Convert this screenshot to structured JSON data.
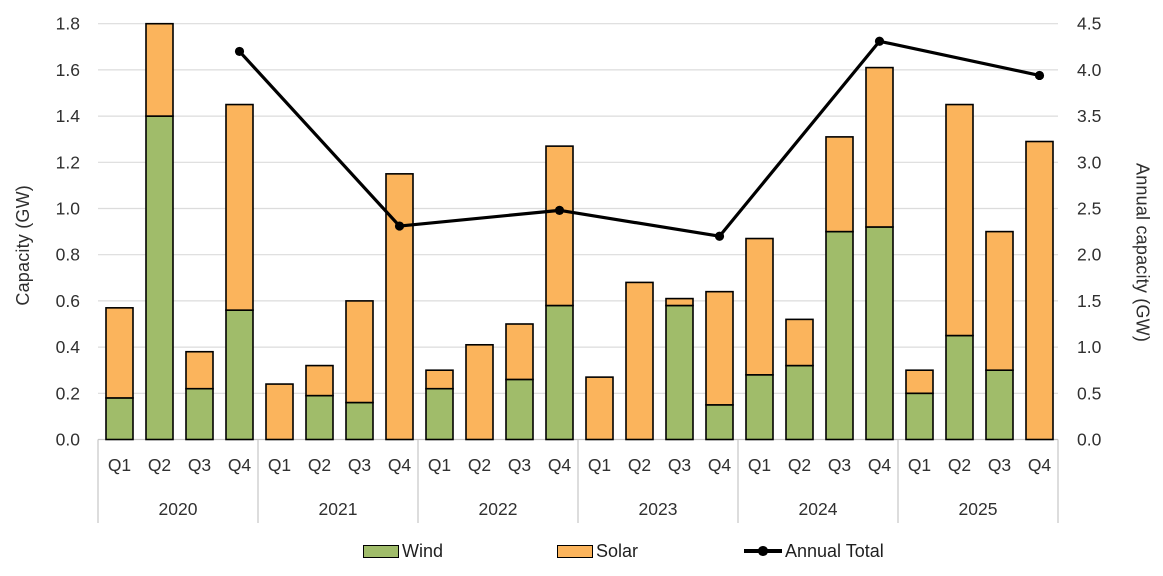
{
  "chart_data": {
    "type": "combo_stacked_bar_line",
    "title": "",
    "years": [
      "2020",
      "2021",
      "2022",
      "2023",
      "2024",
      "2025"
    ],
    "quarters": [
      "Q1",
      "Q2",
      "Q3",
      "Q4"
    ],
    "series": [
      {
        "name": "Wind",
        "type": "bar",
        "stack": "capacity",
        "axis": "left",
        "color": "#A0BC6A",
        "values": [
          [
            0.18,
            1.4,
            0.22,
            0.56
          ],
          [
            0.0,
            0.19,
            0.16,
            0.0
          ],
          [
            0.22,
            0.0,
            0.26,
            0.58
          ],
          [
            0.0,
            0.0,
            0.58,
            0.15
          ],
          [
            0.28,
            0.32,
            0.9,
            0.92
          ],
          [
            0.2,
            0.45,
            0.3,
            0.0
          ]
        ]
      },
      {
        "name": "Solar",
        "type": "bar",
        "stack": "capacity",
        "axis": "left",
        "color": "#FBB45C",
        "values": [
          [
            0.39,
            0.4,
            0.16,
            0.89
          ],
          [
            0.24,
            0.13,
            0.44,
            1.15
          ],
          [
            0.08,
            0.41,
            0.24,
            0.69
          ],
          [
            0.27,
            0.68,
            0.03,
            0.49
          ],
          [
            0.59,
            0.2,
            0.41,
            0.69
          ],
          [
            0.1,
            1.0,
            0.6,
            1.29
          ]
        ]
      },
      {
        "name": "Annual Total",
        "type": "line",
        "axis": "right",
        "color": "#000000",
        "marker": "circle",
        "values": [
          4.2,
          2.31,
          2.48,
          2.2,
          4.31,
          3.94
        ]
      }
    ],
    "left_axis": {
      "title": "Capacity (GW)",
      "min": 0.0,
      "max": 1.8,
      "step": 0.2,
      "ticks": [
        "0.0",
        "0.2",
        "0.4",
        "0.6",
        "0.8",
        "1.0",
        "1.2",
        "1.4",
        "1.6",
        "1.8"
      ]
    },
    "right_axis": {
      "title": "Annual capacity (GW)",
      "min": 0.0,
      "max": 4.5,
      "step": 0.5,
      "ticks": [
        "0.0",
        "0.5",
        "1.0",
        "1.5",
        "2.0",
        "2.5",
        "3.0",
        "3.5",
        "4.0",
        "4.5"
      ]
    },
    "legend": {
      "position": "bottom",
      "entries": [
        "Wind",
        "Solar",
        "Annual Total"
      ]
    },
    "grid": true,
    "colors": {
      "gridline": "#DCDCDC",
      "axis_line": "#C6C6C6",
      "text": "#303030"
    }
  }
}
